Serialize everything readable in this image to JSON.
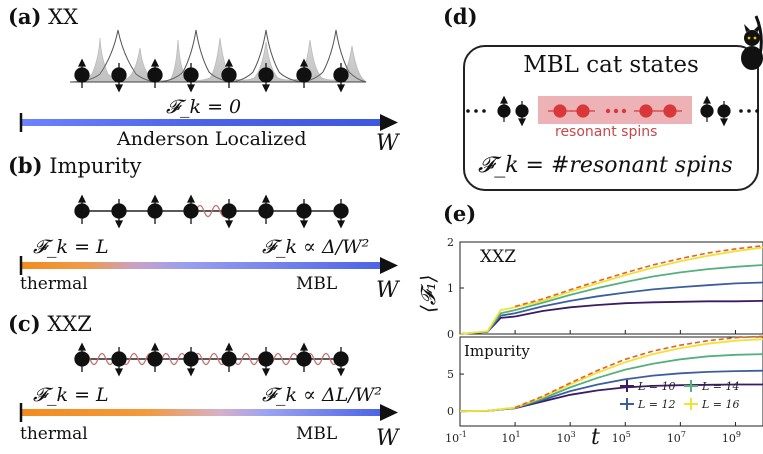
{
  "panels": {
    "a": {
      "label": "(a)",
      "title": "XX",
      "fk": "𝓕_k = 0",
      "bar_text": "Anderson Localized",
      "axis_var": "W"
    },
    "b": {
      "label": "(b)",
      "title": "Impurity",
      "fk_left": "𝓕_k = L",
      "fk_right": "𝓕_k ∝ Δ/W²",
      "left_text": "thermal",
      "right_text": "MBL",
      "axis_var": "W"
    },
    "c": {
      "label": "(c)",
      "title": "XXZ",
      "fk_left": "𝓕_k = L",
      "fk_right": "𝓕_k ∝ ΔL/W²",
      "left_text": "thermal",
      "right_text": "MBL",
      "axis_var": "W"
    },
    "d": {
      "label": "(d)",
      "title": "MBL cat states",
      "resonant": "resonant spins",
      "fk": "𝓕_k = #resonant spins"
    },
    "e": {
      "label": "(e)",
      "top_title": "XXZ",
      "bottom_title": "Impurity",
      "ylabel": "⟨𝓕₁⟩",
      "xlabel": "t"
    }
  },
  "colors": {
    "blue": "#4b63e6",
    "orange": "#f28c1e",
    "red_spin": "#d9383a",
    "resonant_box": "#e9a5a8",
    "dashed": "#e8611a",
    "L10": "#3b1a66",
    "L12": "#3b5f9e",
    "L14": "#55b07e",
    "L16": "#f0e23c"
  },
  "chart_data": [
    {
      "type": "line",
      "title": "XXZ",
      "xscale": "log",
      "xlim": [
        0.1,
        10000000000
      ],
      "ylim": [
        0,
        2
      ],
      "yticks": [
        0,
        1,
        2
      ],
      "xticks": [
        "10^{-1}",
        "10^{1}",
        "10^{3}",
        "10^{5}",
        "10^{7}",
        "10^{9}"
      ],
      "x": [
        0.1,
        1,
        3,
        10,
        100,
        1000,
        10000,
        100000,
        1000000,
        10000000,
        100000000,
        1000000000,
        10000000000
      ],
      "series": [
        {
          "name": "L = 10",
          "values": [
            0,
            0.05,
            0.35,
            0.38,
            0.5,
            0.58,
            0.63,
            0.67,
            0.69,
            0.7,
            0.71,
            0.71,
            0.72
          ]
        },
        {
          "name": "L = 12",
          "values": [
            0,
            0.05,
            0.4,
            0.45,
            0.6,
            0.72,
            0.82,
            0.9,
            0.97,
            1.02,
            1.06,
            1.1,
            1.12
          ]
        },
        {
          "name": "L = 14",
          "values": [
            0,
            0.05,
            0.45,
            0.52,
            0.68,
            0.85,
            1.0,
            1.13,
            1.25,
            1.34,
            1.41,
            1.46,
            1.5
          ]
        },
        {
          "name": "L = 16",
          "values": [
            0,
            0.06,
            0.52,
            0.58,
            0.72,
            0.92,
            1.1,
            1.28,
            1.44,
            1.58,
            1.7,
            1.8,
            1.88
          ]
        },
        {
          "name": "",
          "dashed": true,
          "values": [
            null,
            null,
            null,
            0.6,
            0.76,
            0.96,
            1.15,
            1.33,
            1.5,
            1.64,
            1.76,
            1.85,
            1.92
          ]
        }
      ]
    },
    {
      "type": "line",
      "title": "Impurity",
      "xscale": "log",
      "xlim": [
        0.1,
        10000000000
      ],
      "ylim": [
        -2,
        10
      ],
      "yticks": [
        0,
        5
      ],
      "xticks": [
        "10^{-1}",
        "10^{1}",
        "10^{3}",
        "10^{5}",
        "10^{7}",
        "10^{9}"
      ],
      "x": [
        0.1,
        1,
        10,
        100,
        1000,
        10000,
        100000,
        1000000,
        10000000,
        100000000,
        1000000000,
        10000000000
      ],
      "series": [
        {
          "name": "L = 10",
          "values": [
            0,
            0.05,
            0.4,
            1.3,
            2.2,
            2.8,
            3.2,
            3.4,
            3.5,
            3.55,
            3.6,
            3.6
          ]
        },
        {
          "name": "L = 12",
          "values": [
            0,
            0.05,
            0.42,
            1.5,
            2.7,
            3.6,
            4.3,
            4.8,
            5.1,
            5.3,
            5.4,
            5.45
          ]
        },
        {
          "name": "L = 14",
          "values": [
            0,
            0.05,
            0.45,
            1.7,
            3.2,
            4.5,
            5.6,
            6.4,
            7.0,
            7.4,
            7.6,
            7.7
          ]
        },
        {
          "name": "L = 16",
          "values": [
            0,
            0.05,
            0.48,
            1.9,
            3.6,
            5.2,
            6.6,
            7.7,
            8.5,
            9.1,
            9.5,
            9.7
          ]
        },
        {
          "name": "",
          "dashed": true,
          "values": [
            null,
            null,
            0.5,
            2.0,
            3.8,
            5.5,
            7.0,
            8.1,
            8.9,
            9.5,
            9.9,
            10.1
          ]
        }
      ]
    }
  ]
}
